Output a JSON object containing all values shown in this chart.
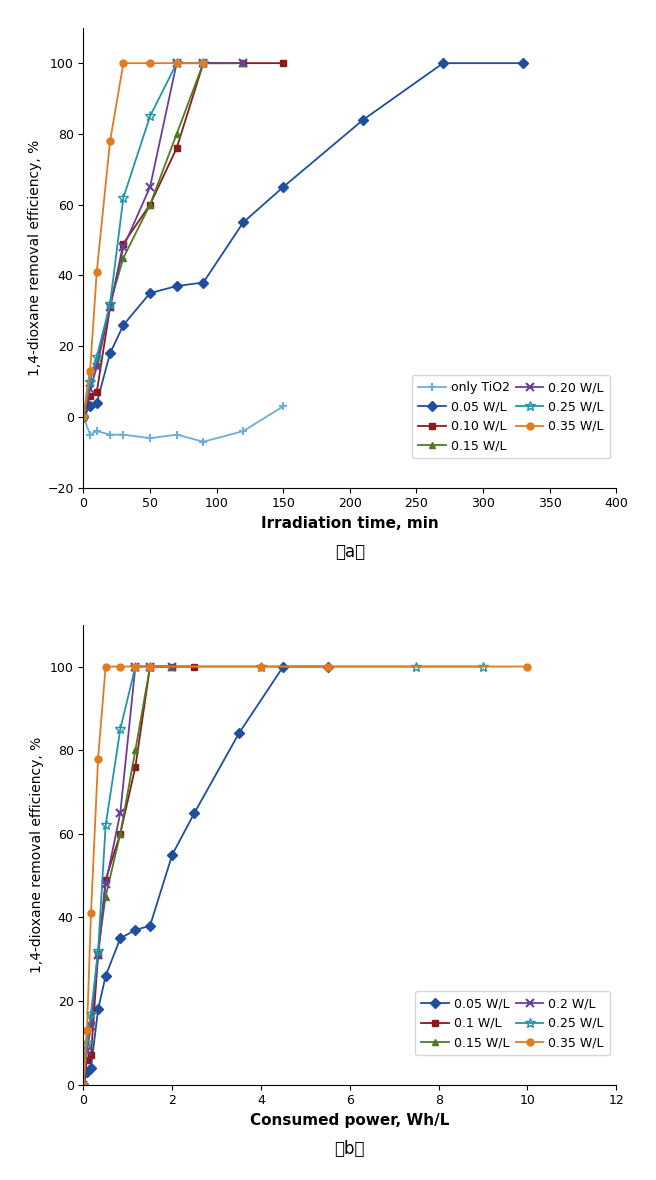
{
  "plot_a": {
    "xlabel": "Irradiation time, min",
    "ylabel": "1,4-dioxane removal efficiency, %",
    "xlim": [
      0,
      400
    ],
    "ylim": [
      -20,
      110
    ],
    "xticks": [
      0,
      50,
      100,
      150,
      200,
      250,
      300,
      350,
      400
    ],
    "yticks": [
      -20,
      0,
      20,
      40,
      60,
      80,
      100
    ],
    "series": [
      {
        "label": "only TiO2",
        "color": "#6baed6",
        "marker": "+",
        "x": [
          0,
          5,
          10,
          20,
          30,
          50,
          70,
          90,
          120,
          150
        ],
        "y": [
          0,
          -5,
          -4,
          -5,
          -5,
          -6,
          -5,
          -7,
          -4,
          3
        ]
      },
      {
        "label": "0.05 W/L",
        "color": "#1f4e9c",
        "marker": "D",
        "x": [
          0,
          5,
          10,
          20,
          30,
          50,
          70,
          90,
          120,
          150,
          210,
          270,
          330
        ],
        "y": [
          0,
          3,
          4,
          18,
          26,
          35,
          37,
          38,
          55,
          65,
          84,
          100,
          100
        ]
      },
      {
        "label": "0.10 W/L",
        "color": "#8b1a1a",
        "marker": "s",
        "x": [
          0,
          5,
          10,
          20,
          30,
          50,
          70,
          90,
          120,
          150
        ],
        "y": [
          0,
          6,
          7,
          31,
          49,
          60,
          76,
          100,
          100,
          100
        ]
      },
      {
        "label": "0.15 W/L",
        "color": "#4d7c1e",
        "marker": "^",
        "x": [
          0,
          5,
          10,
          20,
          30,
          50,
          70,
          90,
          120
        ],
        "y": [
          0,
          13,
          15,
          32,
          45,
          60,
          80,
          100,
          100
        ]
      },
      {
        "label": "0.20 W/L",
        "color": "#6a3d9a",
        "marker": "x",
        "x": [
          0,
          5,
          10,
          20,
          30,
          50,
          70,
          90,
          120
        ],
        "y": [
          0,
          8,
          14,
          31,
          48,
          65,
          100,
          100,
          100
        ]
      },
      {
        "label": "0.25 W/L",
        "color": "#2196a6",
        "marker": "*",
        "x": [
          0,
          5,
          10,
          20,
          30,
          50,
          70,
          90
        ],
        "y": [
          0,
          10,
          17,
          32,
          62,
          85,
          100,
          100
        ]
      },
      {
        "label": "0.35 W/L",
        "color": "#e07b20",
        "marker": "o",
        "x": [
          0,
          5,
          10,
          20,
          30,
          50,
          70,
          90
        ],
        "y": [
          0,
          13,
          41,
          78,
          100,
          100,
          100,
          100
        ]
      }
    ],
    "legend_order": [
      "only TiO2",
      "0.05 W/L",
      "0.10 W/L",
      "0.15 W/L",
      "0.20 W/L",
      "0.25 W/L",
      "0.35 W/L"
    ]
  },
  "plot_b": {
    "xlabel": "Consumed power, Wh/L",
    "ylabel": "1,4-dioxane removal efficiency, %",
    "xlim": [
      0,
      12
    ],
    "ylim": [
      0,
      110
    ],
    "xticks": [
      0,
      2,
      4,
      6,
      8,
      10,
      12
    ],
    "yticks": [
      0,
      20,
      40,
      60,
      80,
      100
    ],
    "series": [
      {
        "label": "0.05 W/L",
        "color": "#1f4e9c",
        "marker": "D",
        "x": [
          0,
          0.08,
          0.17,
          0.33,
          0.5,
          0.83,
          1.17,
          1.5,
          2.0,
          2.5,
          3.5,
          4.5,
          5.5
        ],
        "y": [
          0,
          3,
          4,
          18,
          26,
          35,
          37,
          38,
          55,
          65,
          84,
          100,
          100
        ]
      },
      {
        "label": "0.1 W/L",
        "color": "#8b1a1a",
        "marker": "s",
        "x": [
          0,
          0.08,
          0.17,
          0.33,
          0.5,
          0.83,
          1.17,
          1.5,
          2.0,
          2.5
        ],
        "y": [
          0,
          6,
          7,
          31,
          49,
          60,
          76,
          100,
          100,
          100
        ]
      },
      {
        "label": "0.15 W/L",
        "color": "#4d7c1e",
        "marker": "^",
        "x": [
          0,
          0.08,
          0.17,
          0.33,
          0.5,
          0.83,
          1.17,
          1.5,
          2.0
        ],
        "y": [
          0,
          13,
          15,
          32,
          45,
          60,
          80,
          100,
          100
        ]
      },
      {
        "label": "0.2 W/L",
        "color": "#6a3d9a",
        "marker": "x",
        "x": [
          0,
          0.08,
          0.17,
          0.33,
          0.5,
          0.83,
          1.17,
          1.5,
          2.0
        ],
        "y": [
          0,
          8,
          14,
          31,
          48,
          65,
          100,
          100,
          100
        ]
      },
      {
        "label": "0.25 W/L",
        "color": "#2196a6",
        "marker": "*",
        "x": [
          0,
          0.08,
          0.17,
          0.33,
          0.5,
          0.83,
          1.17,
          1.5,
          4.0,
          7.5,
          9.0
        ],
        "y": [
          0,
          10,
          17,
          32,
          62,
          85,
          100,
          100,
          100,
          100,
          100
        ]
      },
      {
        "label": "0.35 W/L",
        "color": "#e07b20",
        "marker": "o",
        "x": [
          0,
          0.08,
          0.17,
          0.33,
          0.5,
          0.83,
          1.17,
          1.5,
          4.0,
          5.5,
          10.0
        ],
        "y": [
          0,
          13,
          41,
          78,
          100,
          100,
          100,
          100,
          100,
          100,
          100
        ]
      }
    ],
    "legend_order": [
      "0.05 W/L",
      "0.1 W/L",
      "0.15 W/L",
      "0.2 W/L",
      "0.25 W/L",
      "0.35 W/L"
    ]
  }
}
